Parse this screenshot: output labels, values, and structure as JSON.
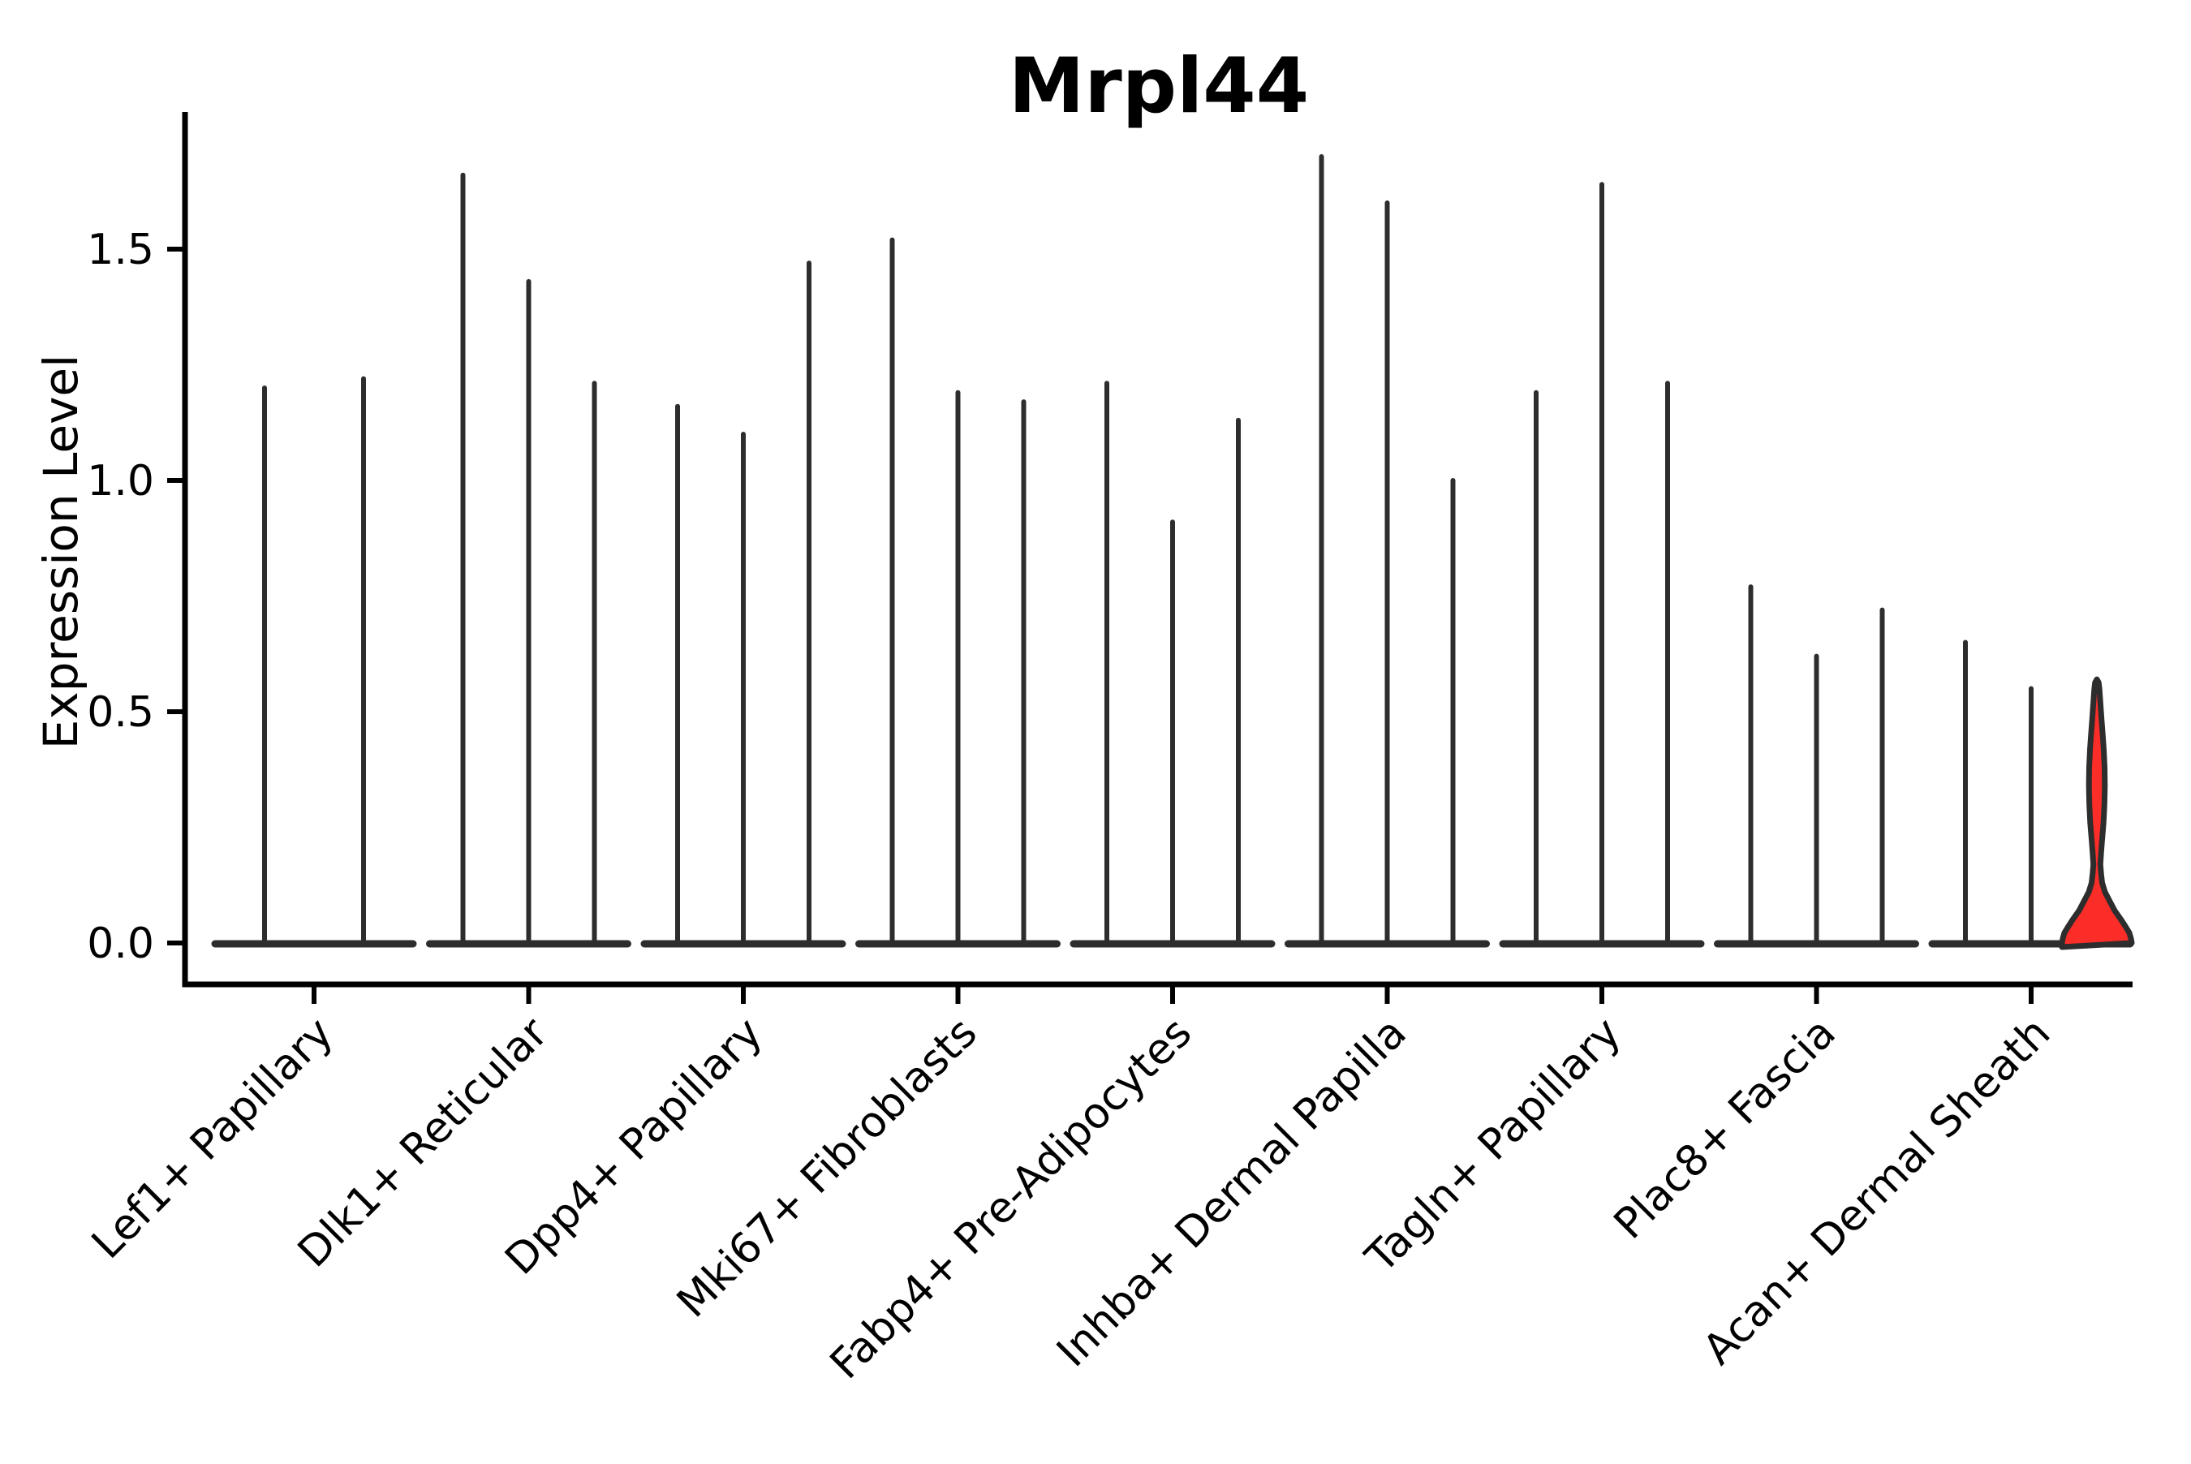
{
  "chart_data": {
    "type": "violin",
    "title": "Mrpl44",
    "ylabel": "Expression Level",
    "xlabel": "",
    "yticks": [
      "0.0",
      "0.5",
      "1.0",
      "1.5"
    ],
    "ytick_values": [
      0.0,
      0.5,
      1.0,
      1.5
    ],
    "ylim": [
      -0.09,
      1.79
    ],
    "grid": false,
    "legend": false,
    "background": "#ffffff",
    "colors": {
      "violin_outline": "#2d2d2d",
      "axis": "#000000",
      "highlight_fill": "#fa2d28"
    },
    "groups": [
      {
        "label": "Lef1+ Papillary",
        "violins": [
          {
            "max": 1.2
          },
          {
            "max": 1.22
          }
        ]
      },
      {
        "label": "Dlk1+ Reticular",
        "violins": [
          {
            "max": 1.66
          },
          {
            "max": 1.43
          },
          {
            "max": 1.21
          }
        ]
      },
      {
        "label": "Dpp4+ Papillary",
        "violins": [
          {
            "max": 1.16
          },
          {
            "max": 1.1
          },
          {
            "max": 1.47
          }
        ]
      },
      {
        "label": "Mki67+ Fibroblasts",
        "violins": [
          {
            "max": 1.52
          },
          {
            "max": 1.19
          },
          {
            "max": 1.17
          }
        ]
      },
      {
        "label": "Fabp4+ Pre-Adipocytes",
        "violins": [
          {
            "max": 1.21
          },
          {
            "max": 0.91
          },
          {
            "max": 1.13
          }
        ]
      },
      {
        "label": "Inhba+ Dermal Papilla",
        "violins": [
          {
            "max": 1.7
          },
          {
            "max": 1.6
          },
          {
            "max": 1.0
          }
        ]
      },
      {
        "label": "Tagln+ Papillary",
        "violins": [
          {
            "max": 1.19
          },
          {
            "max": 1.64
          },
          {
            "max": 1.21
          }
        ]
      },
      {
        "label": "Plac8+ Fascia",
        "violins": [
          {
            "max": 0.77
          },
          {
            "max": 0.62
          },
          {
            "max": 0.72
          }
        ]
      },
      {
        "label": "Acan+ Dermal Sheath",
        "violins": [
          {
            "max": 0.65
          },
          {
            "max": 0.55
          },
          {
            "max": 0.57,
            "filled": true,
            "fill": "#fa2d28"
          }
        ]
      }
    ]
  }
}
